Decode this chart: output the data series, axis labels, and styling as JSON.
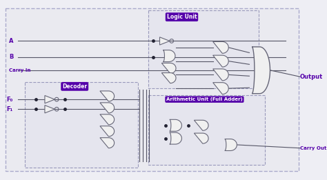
{
  "bg_color": "#eeeef4",
  "inner_bg": "#e8e8ee",
  "outer_box_color": "#aaaacc",
  "purple": "#5500aa",
  "wire_color": "#555566",
  "gate_fill": "#f0f0f0",
  "gate_edge": "#666677",
  "label_A": "A",
  "label_B": "B",
  "label_CarryIn": "Carry In",
  "label_F0": "F₀",
  "label_F1": "F₁",
  "label_Output": "Output",
  "label_CarryOut": "Carry Out",
  "logic_unit_label": "Logic Unit",
  "decoder_label": "Decoder",
  "arith_label": "Arithmetic Unit (Full Adder)"
}
